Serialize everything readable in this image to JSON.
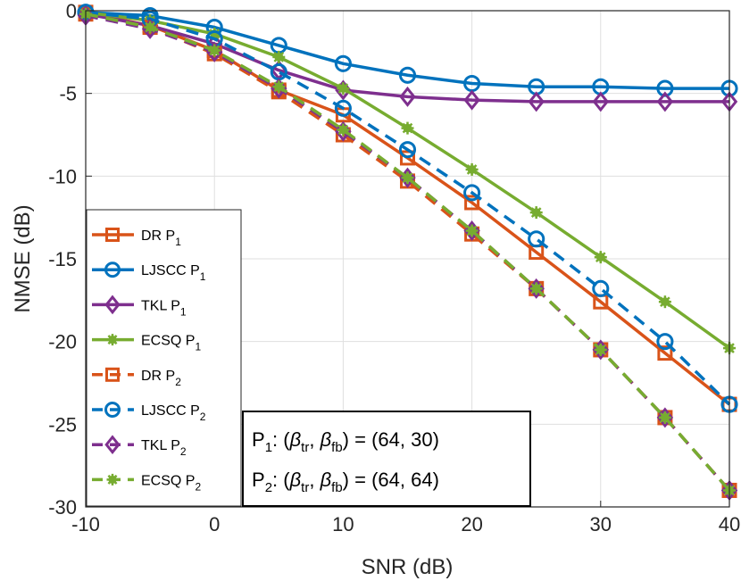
{
  "chart_data": {
    "type": "line",
    "title": "",
    "xlabel": "SNR (dB)",
    "ylabel": "NMSE (dB)",
    "xlim": [
      -10,
      40
    ],
    "ylim": [
      -30,
      0
    ],
    "xticks": [
      -10,
      0,
      10,
      20,
      30,
      40
    ],
    "yticks": [
      0,
      -5,
      -10,
      -15,
      -20,
      -25,
      -30
    ],
    "grid": true,
    "legend_position": "left",
    "x": [
      -10,
      -5,
      0,
      5,
      10,
      15,
      20,
      25,
      30,
      35,
      40
    ],
    "series": [
      {
        "name": "DR",
        "sub": "1",
        "color": "#D95319",
        "marker": "square",
        "dash": "solid",
        "values": [
          -0.1,
          -0.9,
          -2.4,
          -4.8,
          -6.3,
          -8.9,
          -11.6,
          -14.6,
          -17.6,
          -20.7,
          -23.8
        ]
      },
      {
        "name": "LJSCC",
        "sub": "1",
        "color": "#0072BD",
        "marker": "circle",
        "dash": "solid",
        "values": [
          -0.1,
          -0.3,
          -1.0,
          -2.1,
          -3.2,
          -3.9,
          -4.4,
          -4.6,
          -4.6,
          -4.7,
          -4.7
        ]
      },
      {
        "name": "TKL",
        "sub": "1",
        "color": "#7E2F8E",
        "marker": "diamond",
        "dash": "solid",
        "values": [
          -0.2,
          -0.9,
          -2.0,
          -3.6,
          -4.8,
          -5.2,
          -5.4,
          -5.5,
          -5.5,
          -5.5,
          -5.5
        ]
      },
      {
        "name": "ECSQ",
        "sub": "1",
        "color": "#77AC30",
        "marker": "asterisk",
        "dash": "solid",
        "values": [
          -0.1,
          -0.6,
          -1.4,
          -2.8,
          -4.7,
          -7.1,
          -9.6,
          -12.2,
          -14.9,
          -17.6,
          -20.4
        ]
      },
      {
        "name": "DR",
        "sub": "2",
        "color": "#D95319",
        "marker": "square",
        "dash": "dashed",
        "values": [
          -0.2,
          -1.0,
          -2.6,
          -4.9,
          -7.5,
          -10.3,
          -13.5,
          -16.8,
          -20.5,
          -24.6,
          -29.0
        ]
      },
      {
        "name": "LJSCC",
        "sub": "2",
        "color": "#0072BD",
        "marker": "circle",
        "dash": "dashed",
        "values": [
          -0.1,
          -0.5,
          -1.7,
          -3.7,
          -5.9,
          -8.4,
          -11.0,
          -13.8,
          -16.8,
          -20.0,
          -23.8
        ]
      },
      {
        "name": "TKL",
        "sub": "2",
        "color": "#7E2F8E",
        "marker": "diamond",
        "dash": "dashed",
        "values": [
          -0.3,
          -1.1,
          -2.5,
          -4.7,
          -7.3,
          -10.1,
          -13.3,
          -16.8,
          -20.5,
          -24.6,
          -29.0
        ]
      },
      {
        "name": "ECSQ",
        "sub": "2",
        "color": "#77AC30",
        "marker": "asterisk",
        "dash": "dashed",
        "values": [
          -0.2,
          -1.0,
          -2.4,
          -4.6,
          -7.2,
          -10.1,
          -13.3,
          -16.8,
          -20.5,
          -24.6,
          -29.0
        ]
      }
    ],
    "legend_label_parts": {
      "symbol": "P",
      "sep": " "
    },
    "annotation": {
      "line1": {
        "p": "P",
        "p_sub": "1",
        "colon": ":  (",
        "beta": "β",
        "tr": "tr",
        "comma": ", ",
        "fb": "fb",
        "rest": ") = (64, 30)"
      },
      "line2": {
        "p": "P",
        "p_sub": "2",
        "colon": ":  (",
        "beta": "β",
        "tr": "tr",
        "comma": ", ",
        "fb": "fb",
        "rest": ") = (64, 64)"
      }
    }
  }
}
